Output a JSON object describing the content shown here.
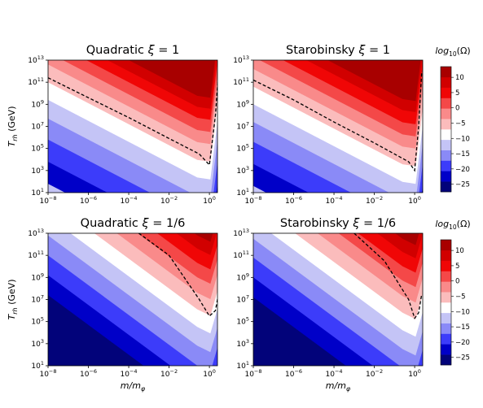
{
  "figure": {
    "colorbar_label_top": "log10(Ω)",
    "colorbar_label_bottom": "log10(Ω)"
  },
  "panels_meta": {
    "x_axis_label": "m/mφ",
    "y_axis_label": "T_rh (GeV)"
  },
  "colors": {
    "levels": [
      -25,
      -20,
      -15,
      -10,
      -5,
      0,
      5,
      10
    ],
    "fills": [
      "#02037a",
      "#0000c8",
      "#3c3cfa",
      "#8a8af7",
      "#c4c4f6",
      "#ffffff",
      "#fbbcbc",
      "#f98a8a",
      "#f44848",
      "#f00606",
      "#d10000",
      "#a80000"
    ]
  },
  "chart_data": [
    {
      "type": "heatmap",
      "panel": "top-left",
      "title": "Quadratic ξ = 1",
      "title_model": "Quadratic",
      "title_xi": "1",
      "x": "log10(m/mφ) from -8 to 0.4",
      "xlim_log10": [
        -8,
        0.4
      ],
      "ylim_log10": [
        1,
        13
      ],
      "xticks": [
        "10−8",
        "10−6",
        "10−4",
        "10−2",
        "100"
      ],
      "yticks": [
        "101",
        "103",
        "105",
        "107",
        "109",
        "1011",
        "1013"
      ],
      "contour_slope": -0.91,
      "contour_offset_at_x_minus8": 3.0,
      "dashed_line": [
        [
          -8,
          11.4
        ],
        [
          -6,
          9.6
        ],
        [
          -4,
          7.8
        ],
        [
          -2,
          5.9
        ],
        [
          -0.5,
          4.5
        ],
        [
          0,
          3.5
        ],
        [
          0.3,
          8
        ],
        [
          0.45,
          12
        ]
      ],
      "ylabel": "T_rh (GeV)"
    },
    {
      "type": "heatmap",
      "panel": "top-right",
      "title": "Starobinsky ξ = 1",
      "title_model": "Starobinsky",
      "title_xi": "1",
      "xlim_log10": [
        -8,
        0.4
      ],
      "ylim_log10": [
        1,
        13
      ],
      "xticks": [
        "10−8",
        "10−6",
        "10−4",
        "10−2",
        "100"
      ],
      "yticks": [
        "101",
        "103",
        "105",
        "107",
        "109",
        "1011",
        "1013"
      ],
      "dashed_line": [
        [
          -8,
          11.2
        ],
        [
          -6,
          9.4
        ],
        [
          -4,
          7.4
        ],
        [
          -2,
          5.5
        ],
        [
          -0.3,
          3.8
        ],
        [
          0,
          3.0
        ],
        [
          0.2,
          7
        ],
        [
          0.35,
          12
        ]
      ]
    },
    {
      "type": "heatmap",
      "panel": "bottom-left",
      "title": "Quadratic ξ = 1/6",
      "title_model": "Quadratic",
      "title_xi": "1/6",
      "xlabel": "m/mφ",
      "ylabel": "T_rh (GeV)",
      "xlim_log10": [
        -8,
        0.4
      ],
      "ylim_log10": [
        1,
        13
      ],
      "xticks": [
        "10−8",
        "10−6",
        "10−4",
        "10−2",
        "100"
      ],
      "yticks": [
        "101",
        "103",
        "105",
        "107",
        "109",
        "1011",
        "1013"
      ],
      "dashed_line": [
        [
          -3.5,
          13
        ],
        [
          -2,
          11
        ],
        [
          -0.5,
          7
        ],
        [
          0,
          5.5
        ],
        [
          0.3,
          6
        ],
        [
          0.45,
          7.5
        ]
      ]
    },
    {
      "type": "heatmap",
      "panel": "bottom-right",
      "title": "Starobinsky ξ = 1/6",
      "title_model": "Starobinsky",
      "title_xi": "1/6",
      "xlabel": "m/mφ",
      "xlim_log10": [
        -8,
        0.4
      ],
      "ylim_log10": [
        1,
        13
      ],
      "xticks": [
        "10−8",
        "10−6",
        "10−4",
        "10−2",
        "100"
      ],
      "yticks": [
        "101",
        "103",
        "105",
        "107",
        "109",
        "1011",
        "1013"
      ],
      "dashed_line": [
        [
          -3.0,
          13
        ],
        [
          -1.5,
          10.5
        ],
        [
          -0.3,
          7
        ],
        [
          0,
          5.3
        ],
        [
          0.2,
          5.8
        ],
        [
          0.35,
          7.5
        ]
      ]
    }
  ],
  "colorbar": {
    "ticks": [
      "10",
      "5",
      "0",
      "−5",
      "−10",
      "−15",
      "−20",
      "−25"
    ]
  }
}
